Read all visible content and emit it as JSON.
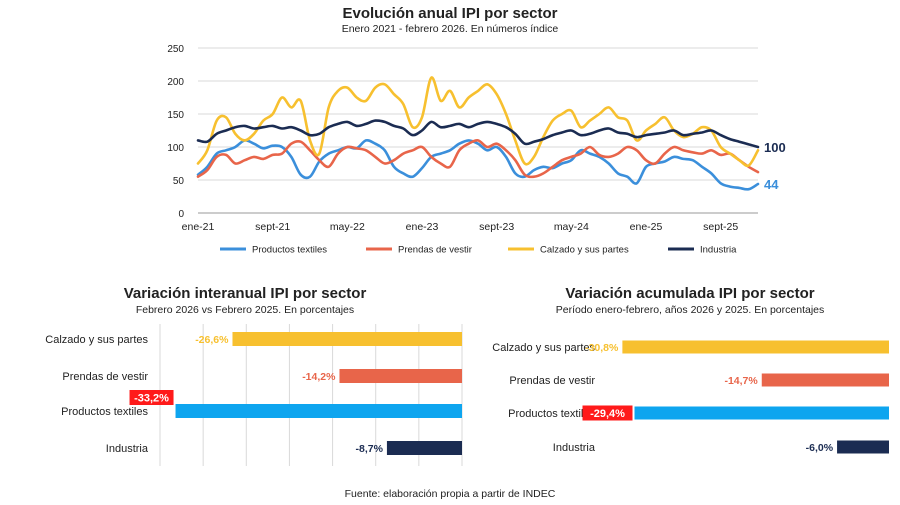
{
  "colors": {
    "textiles": "#3b8fdb",
    "prendas": "#e8654a",
    "calzado": "#f7c02f",
    "industria": "#1b2c52",
    "textiles_bar": "#0ea5ef",
    "highlight_red": "#ff1a1a",
    "grid": "#d9d9d9"
  },
  "source": "Fuente: elaboración propia a partir de INDEC",
  "chart_data": [
    {
      "type": "line",
      "title": "Evolución anual IPI por sector",
      "subtitle": "Enero 2021 - febrero 2026. En números índice",
      "ylim": [
        0,
        250
      ],
      "yticks": [
        0,
        50,
        100,
        150,
        200,
        250
      ],
      "grid": true,
      "legend": "bottom",
      "x_tick_labels": [
        "ene-21",
        "sept-21",
        "may-22",
        "ene-23",
        "sept-23",
        "may-24",
        "ene-25",
        "sept-25"
      ],
      "x_tick_index": [
        0,
        8,
        16,
        24,
        32,
        40,
        48,
        56
      ],
      "end_labels": [
        {
          "series": "Industria",
          "text": "100"
        },
        {
          "series": "Productos textiles",
          "text": "44"
        }
      ],
      "series": [
        {
          "name": "Productos textiles",
          "color_key": "textiles",
          "values": [
            58,
            70,
            90,
            95,
            100,
            110,
            105,
            98,
            102,
            100,
            85,
            58,
            55,
            78,
            90,
            95,
            100,
            98,
            110,
            105,
            95,
            70,
            60,
            55,
            68,
            85,
            90,
            95,
            105,
            110,
            105,
            95,
            100,
            85,
            60,
            55,
            65,
            70,
            68,
            75,
            80,
            95,
            90,
            85,
            75,
            60,
            55,
            45,
            70,
            75,
            78,
            85,
            82,
            80,
            70,
            60,
            45,
            40,
            38,
            36,
            44
          ]
        },
        {
          "name": "Prendas de vestir",
          "color_key": "prendas",
          "values": [
            55,
            65,
            85,
            88,
            75,
            80,
            85,
            82,
            88,
            90,
            105,
            108,
            95,
            80,
            70,
            90,
            100,
            98,
            95,
            85,
            75,
            80,
            90,
            95,
            100,
            85,
            75,
            70,
            95,
            105,
            110,
            100,
            105,
            95,
            80,
            58,
            55,
            60,
            70,
            80,
            85,
            90,
            100,
            88,
            85,
            90,
            100,
            95,
            80,
            75,
            90,
            100,
            95,
            92,
            90,
            95,
            88,
            90,
            80,
            70,
            62
          ]
        },
        {
          "name": "Calzado y sus partes",
          "color_key": "calzado",
          "values": [
            75,
            95,
            140,
            145,
            120,
            110,
            120,
            140,
            150,
            175,
            160,
            170,
            110,
            90,
            160,
            185,
            190,
            175,
            170,
            190,
            195,
            180,
            165,
            130,
            145,
            205,
            170,
            185,
            160,
            175,
            185,
            195,
            180,
            150,
            110,
            75,
            85,
            115,
            140,
            150,
            155,
            130,
            140,
            150,
            160,
            145,
            140,
            110,
            125,
            135,
            145,
            125,
            115,
            120,
            130,
            125,
            100,
            90,
            80,
            72,
            95
          ]
        },
        {
          "name": "Industria",
          "color_key": "industria",
          "values": [
            110,
            108,
            120,
            125,
            130,
            132,
            128,
            130,
            132,
            128,
            130,
            125,
            118,
            120,
            130,
            135,
            138,
            132,
            135,
            140,
            138,
            132,
            128,
            118,
            125,
            138,
            130,
            132,
            135,
            130,
            135,
            138,
            135,
            130,
            120,
            105,
            108,
            112,
            118,
            122,
            125,
            118,
            120,
            125,
            128,
            122,
            120,
            115,
            118,
            120,
            122,
            125,
            118,
            120,
            122,
            125,
            118,
            112,
            108,
            104,
            100
          ]
        }
      ]
    },
    {
      "type": "bar",
      "orientation": "horizontal",
      "title": "Variación interanual IPI por sector",
      "subtitle": "Febrero 2026  vs Febrero  2025. En porcentajes",
      "categories": [
        "Calzado y sus partes",
        "Prendas de vestir",
        "Productos textiles",
        "Industria"
      ],
      "values": [
        -26.6,
        -14.2,
        -33.2,
        -8.7
      ],
      "labels": [
        "-26,6%",
        "-14,2%",
        "-33,2%",
        "-8,7%"
      ],
      "color_keys": [
        "calzado",
        "prendas",
        "textiles_bar",
        "industria"
      ],
      "highlight_index": 2,
      "xlim": [
        -35,
        0
      ],
      "grid": true
    },
    {
      "type": "bar",
      "orientation": "horizontal",
      "title": "Variación acumulada IPI por sector",
      "subtitle": "Período enero-febrero, años 2026 y 2025. En porcentajes",
      "categories": [
        "Calzado y sus partes",
        "Prendas de vestir",
        "Productos textiles",
        "Industria"
      ],
      "values": [
        -30.8,
        -14.7,
        -29.4,
        -6.0
      ],
      "labels": [
        "-30,8%",
        "-14,7%",
        "-29,4%",
        "-6,0%"
      ],
      "color_keys": [
        "calzado",
        "prendas",
        "textiles_bar",
        "industria"
      ],
      "highlight_index": 2,
      "xlim": [
        -32,
        0
      ],
      "grid": false
    }
  ]
}
